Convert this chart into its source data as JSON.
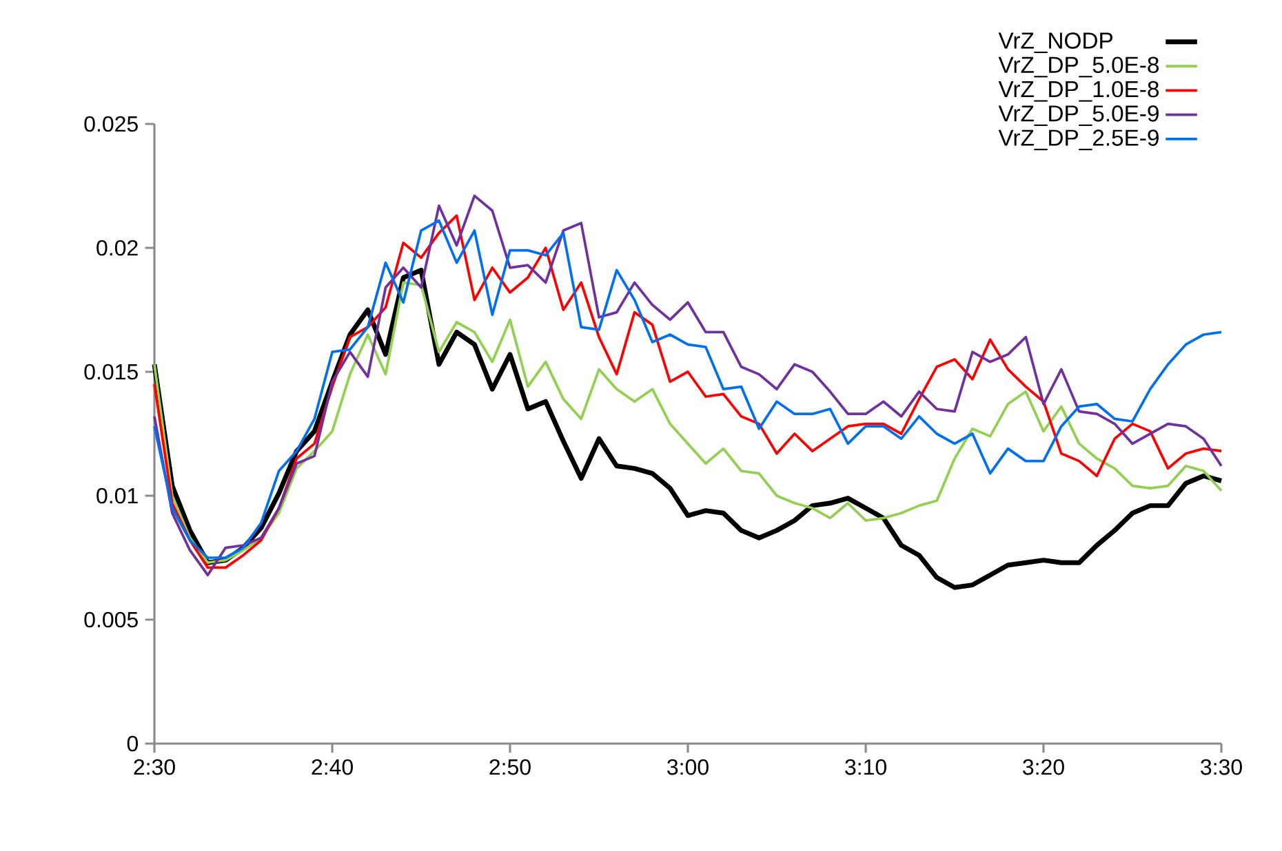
{
  "chart_data": {
    "type": "line",
    "x": [
      2.5,
      2.5167,
      2.5333,
      2.55,
      2.5667,
      2.5833,
      2.6,
      2.6167,
      2.6333,
      2.65,
      2.6667,
      2.6833,
      2.7,
      2.7167,
      2.7333,
      2.75,
      2.7667,
      2.7833,
      2.8,
      2.8167,
      2.8333,
      2.85,
      2.8667,
      2.8833,
      2.9,
      2.9167,
      2.9333,
      2.95,
      2.9667,
      2.9833,
      3.0,
      3.0167,
      3.0333,
      3.05,
      3.0667,
      3.0833,
      3.1,
      3.1167,
      3.1333,
      3.15,
      3.1667,
      3.1833,
      3.2,
      3.2167,
      3.2333,
      3.25,
      3.2667,
      3.2833,
      3.3,
      3.3167,
      3.3333,
      3.35,
      3.3667,
      3.3833,
      3.4,
      3.4167,
      3.4333,
      3.45,
      3.4667,
      3.4833,
      3.5
    ],
    "series": [
      {
        "name": "VrZ_NODP",
        "color": "#000000",
        "values": [
          0.0153,
          0.0104,
          0.0086,
          0.0073,
          0.0074,
          0.0079,
          0.0087,
          0.0101,
          0.0118,
          0.0126,
          0.0146,
          0.0165,
          0.0175,
          0.0157,
          0.0188,
          0.0191,
          0.0153,
          0.0166,
          0.0161,
          0.0143,
          0.0157,
          0.0135,
          0.0138,
          0.0122,
          0.0107,
          0.0123,
          0.0112,
          0.0111,
          0.0109,
          0.0103,
          0.0092,
          0.0094,
          0.0093,
          0.0086,
          0.0083,
          0.0086,
          0.009,
          0.0096,
          0.0097,
          0.0099,
          0.0095,
          0.0091,
          0.008,
          0.0076,
          0.0067,
          0.0063,
          0.0064,
          0.0068,
          0.0072,
          0.0073,
          0.0074,
          0.0073,
          0.0073,
          0.008,
          0.0086,
          0.0093,
          0.0096,
          0.0096,
          0.0105,
          0.0108,
          0.0106
        ]
      },
      {
        "name": "VrZ_DP_5.0E-8",
        "color": "#92d050",
        "values": [
          0.0153,
          0.01,
          0.0083,
          0.0073,
          0.0074,
          0.0078,
          0.0083,
          0.0093,
          0.0111,
          0.0118,
          0.0126,
          0.0149,
          0.0165,
          0.0149,
          0.0186,
          0.0185,
          0.0158,
          0.017,
          0.0166,
          0.0154,
          0.0171,
          0.0144,
          0.0154,
          0.0139,
          0.0131,
          0.0151,
          0.0143,
          0.0138,
          0.0143,
          0.0129,
          0.0121,
          0.0113,
          0.0119,
          0.011,
          0.0109,
          0.01,
          0.0097,
          0.0095,
          0.0091,
          0.0097,
          0.009,
          0.0091,
          0.0093,
          0.0096,
          0.0098,
          0.0115,
          0.0127,
          0.0124,
          0.0137,
          0.0142,
          0.0126,
          0.0136,
          0.0121,
          0.0115,
          0.0111,
          0.0104,
          0.0103,
          0.0104,
          0.0112,
          0.011,
          0.0102
        ]
      },
      {
        "name": "VrZ_DP_1.0E-8",
        "color": "#ff0000",
        "values": [
          0.0145,
          0.0097,
          0.0082,
          0.0071,
          0.0071,
          0.0076,
          0.0082,
          0.0095,
          0.0115,
          0.0121,
          0.0144,
          0.0164,
          0.0168,
          0.0176,
          0.0202,
          0.0196,
          0.0206,
          0.0213,
          0.0179,
          0.0192,
          0.0182,
          0.0188,
          0.02,
          0.0175,
          0.0186,
          0.0164,
          0.0149,
          0.0174,
          0.0169,
          0.0146,
          0.015,
          0.014,
          0.0141,
          0.0132,
          0.0129,
          0.0117,
          0.0125,
          0.0118,
          0.0123,
          0.0128,
          0.0129,
          0.0129,
          0.0125,
          0.0139,
          0.0152,
          0.0155,
          0.0147,
          0.0163,
          0.0151,
          0.0144,
          0.0138,
          0.0117,
          0.0114,
          0.0108,
          0.0123,
          0.0129,
          0.0126,
          0.0111,
          0.0117,
          0.0119,
          0.0118
        ]
      },
      {
        "name": "VrZ_DP_5.0E-9",
        "color": "#7030a0",
        "values": [
          0.0132,
          0.0093,
          0.0078,
          0.0068,
          0.0079,
          0.008,
          0.0083,
          0.0095,
          0.0113,
          0.0116,
          0.0146,
          0.0158,
          0.0148,
          0.0184,
          0.0192,
          0.0184,
          0.0217,
          0.0201,
          0.0221,
          0.0215,
          0.0192,
          0.0193,
          0.0186,
          0.0207,
          0.021,
          0.0172,
          0.0174,
          0.0186,
          0.0177,
          0.0171,
          0.0178,
          0.0166,
          0.0166,
          0.0152,
          0.0149,
          0.0143,
          0.0153,
          0.015,
          0.0142,
          0.0133,
          0.0133,
          0.0138,
          0.0132,
          0.0142,
          0.0135,
          0.0134,
          0.0158,
          0.0154,
          0.0157,
          0.0164,
          0.0137,
          0.0151,
          0.0134,
          0.0133,
          0.0129,
          0.0121,
          0.0125,
          0.0129,
          0.0128,
          0.0123,
          0.0112
        ]
      },
      {
        "name": "VrZ_DP_2.5E-9",
        "color": "#0070f0",
        "values": [
          0.0128,
          0.0095,
          0.0082,
          0.0075,
          0.0075,
          0.0079,
          0.0089,
          0.011,
          0.0118,
          0.0131,
          0.0158,
          0.0159,
          0.0168,
          0.0194,
          0.0178,
          0.0207,
          0.0211,
          0.0194,
          0.0207,
          0.0173,
          0.0199,
          0.0199,
          0.0197,
          0.0206,
          0.0168,
          0.0167,
          0.0191,
          0.0179,
          0.0162,
          0.0165,
          0.0161,
          0.016,
          0.0143,
          0.0144,
          0.0127,
          0.0138,
          0.0133,
          0.0133,
          0.0135,
          0.0121,
          0.0128,
          0.0128,
          0.0123,
          0.0132,
          0.0125,
          0.0121,
          0.0125,
          0.0109,
          0.0119,
          0.0114,
          0.0114,
          0.0128,
          0.0136,
          0.0137,
          0.0131,
          0.013,
          0.0143,
          0.0153,
          0.0161,
          0.0165,
          0.0166
        ]
      }
    ],
    "xlim": [
      2.5,
      3.5
    ],
    "xticks": [
      {
        "value": 2.5,
        "label": "2:30"
      },
      {
        "value": 2.6667,
        "label": "2:40"
      },
      {
        "value": 2.8333,
        "label": "2:50"
      },
      {
        "value": 3.0,
        "label": "3:00"
      },
      {
        "value": 3.1667,
        "label": "3:10"
      },
      {
        "value": 3.3333,
        "label": "3:20"
      },
      {
        "value": 3.5,
        "label": "3:30"
      }
    ],
    "ylim": [
      0,
      0.025
    ],
    "yticks": [
      0,
      0.005,
      0.01,
      0.015,
      0.02,
      0.025
    ],
    "grid": false,
    "legend": "top right",
    "marker": "none",
    "line_style": "solid"
  }
}
